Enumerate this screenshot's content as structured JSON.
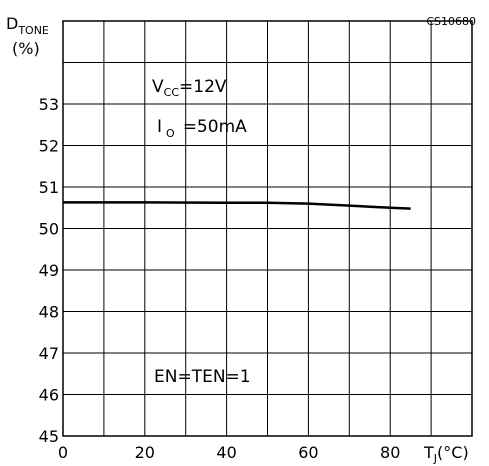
{
  "chart_data": {
    "type": "line",
    "ylabel": "D",
    "ylabel_sub": "TONE",
    "ylabel_unit": "(%)",
    "xlabel": "T",
    "xlabel_sub": "J",
    "xlabel_unit": "(°C)",
    "xlim": [
      0,
      100
    ],
    "ylim": [
      45,
      55
    ],
    "x_ticks": [
      0,
      20,
      40,
      60,
      80
    ],
    "y_ticks": [
      45,
      46,
      47,
      48,
      49,
      50,
      51,
      52,
      53
    ],
    "grid": true,
    "corner_label": "CS10680",
    "annotations": {
      "vcc_main": "V",
      "vcc_sub": "CC",
      "vcc_value": "=12V",
      "io_main": "I",
      "io_sub": "O",
      "io_value": "=50mA",
      "en": "EN=TEN=1"
    },
    "series": [
      {
        "x": [
          0,
          20,
          40,
          50,
          60,
          70,
          80,
          85
        ],
        "y": [
          50.63,
          50.63,
          50.62,
          50.62,
          50.6,
          50.55,
          50.5,
          50.48
        ]
      }
    ]
  }
}
